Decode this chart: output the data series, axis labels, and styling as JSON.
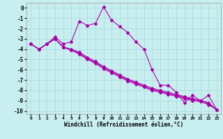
{
  "xlabel": "Windchill (Refroidissement éolien,°C)",
  "background_color": "#c8eef0",
  "grid_color": "#aadddd",
  "line_color": "#aa00aa",
  "xlim": [
    -0.5,
    23.5
  ],
  "ylim": [
    -10.3,
    0.5
  ],
  "yticks": [
    0,
    -1,
    -2,
    -3,
    -4,
    -5,
    -6,
    -7,
    -8,
    -9,
    -10
  ],
  "xticks": [
    0,
    1,
    2,
    3,
    4,
    5,
    6,
    7,
    8,
    9,
    10,
    11,
    12,
    13,
    14,
    15,
    16,
    17,
    18,
    19,
    20,
    21,
    22,
    23
  ],
  "series_x": [
    0,
    1,
    2,
    3,
    4,
    5,
    6,
    7,
    8,
    9,
    10,
    11,
    12,
    13,
    14,
    15,
    16,
    17,
    18,
    19,
    20,
    21,
    22,
    23
  ],
  "series": [
    [
      -3.5,
      -4.0,
      -3.5,
      -2.8,
      -3.5,
      -3.3,
      -1.3,
      -1.7,
      -1.5,
      0.1,
      -1.2,
      -1.8,
      -2.4,
      -3.3,
      -4.0,
      -6.0,
      -7.5,
      -7.5,
      -8.2,
      -9.2,
      -8.5,
      -9.0,
      -8.5,
      -9.9
    ],
    [
      -3.5,
      -4.0,
      -3.5,
      -3.0,
      -3.8,
      -4.0,
      -4.3,
      -4.8,
      -5.2,
      -5.7,
      -6.1,
      -6.5,
      -6.9,
      -7.2,
      -7.5,
      -7.8,
      -8.0,
      -8.2,
      -8.4,
      -8.6,
      -8.8,
      -9.0,
      -9.2,
      -9.9
    ],
    [
      -3.5,
      -4.0,
      -3.5,
      -3.0,
      -3.8,
      -4.1,
      -4.4,
      -4.9,
      -5.3,
      -5.8,
      -6.2,
      -6.6,
      -7.0,
      -7.3,
      -7.6,
      -7.9,
      -8.1,
      -8.3,
      -8.5,
      -8.7,
      -8.9,
      -9.0,
      -9.3,
      -9.9
    ],
    [
      -3.5,
      -4.0,
      -3.5,
      -3.0,
      -3.8,
      -4.1,
      -4.5,
      -5.0,
      -5.4,
      -5.9,
      -6.3,
      -6.7,
      -7.1,
      -7.4,
      -7.7,
      -8.0,
      -8.2,
      -8.4,
      -8.6,
      -8.8,
      -9.0,
      -9.1,
      -9.4,
      -9.9
    ]
  ]
}
